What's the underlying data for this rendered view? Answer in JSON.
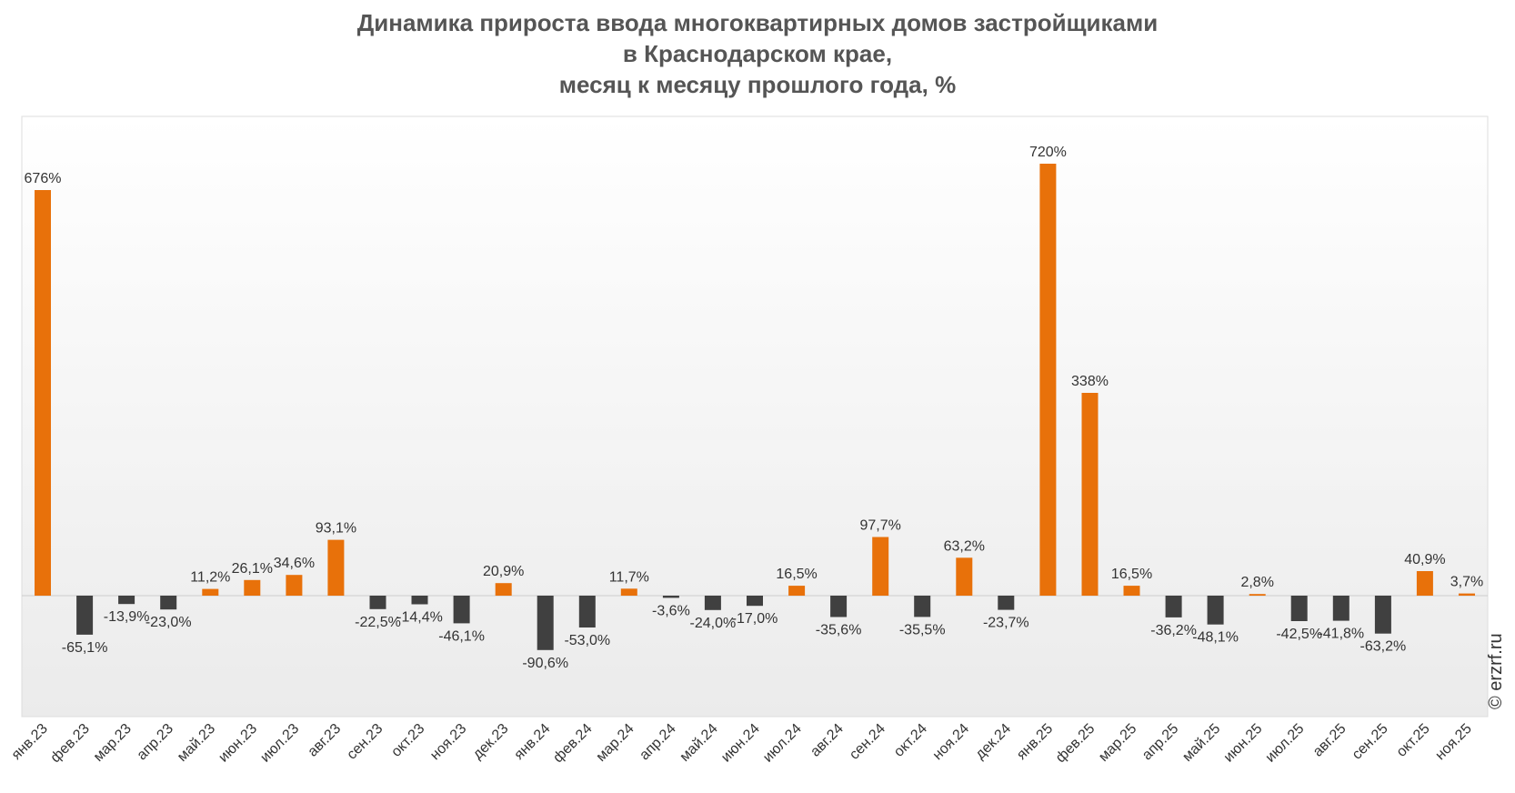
{
  "chart_data": {
    "type": "bar",
    "title": [
      "Динамика прироста ввода многоквартирных домов застройщиками",
      "в Краснодарском крае,",
      "месяц к месяцу прошлого года, %"
    ],
    "xlabel": "",
    "ylabel": "",
    "ylim": [
      -200,
      800
    ],
    "grid": false,
    "legend": "none",
    "colors": {
      "positive": "#e8710a",
      "negative": "#404040"
    },
    "categories": [
      "янв.23",
      "фев.23",
      "мар.23",
      "апр.23",
      "май.23",
      "июн.23",
      "июл.23",
      "авг.23",
      "сен.23",
      "окт.23",
      "ноя.23",
      "дек.23",
      "янв.24",
      "фев.24",
      "мар.24",
      "апр.24",
      "май.24",
      "июн.24",
      "июл.24",
      "авг.24",
      "сен.24",
      "окт.24",
      "ноя.24",
      "дек.24",
      "янв.25",
      "фев.25",
      "мар.25",
      "апр.25",
      "май.25",
      "июн.25",
      "июл.25",
      "авг.25",
      "сен.25",
      "окт.25",
      "ноя.25"
    ],
    "values": [
      676,
      -65.1,
      -13.9,
      -23.0,
      11.2,
      26.1,
      34.6,
      93.1,
      -22.5,
      -14.4,
      -46.1,
      20.9,
      -90.6,
      -53.0,
      11.7,
      -3.6,
      -24.0,
      -17.0,
      16.5,
      -35.6,
      97.7,
      -35.5,
      63.2,
      -23.7,
      720,
      338,
      16.5,
      -36.2,
      -48.1,
      2.8,
      -42.5,
      -41.8,
      -63.2,
      40.9,
      3.7
    ],
    "data_labels": [
      "676%",
      "-65,1%",
      "-13,9%",
      "-23,0%",
      "11,2%",
      "26,1%",
      "34,6%",
      "93,1%",
      "-22,5%",
      "-14,4%",
      "-46,1%",
      "20,9%",
      "-90,6%",
      "-53,0%",
      "11,7%",
      "-3,6%",
      "-24,0%",
      "-17,0%",
      "16,5%",
      "-35,6%",
      "97,7%",
      "-35,5%",
      "63,2%",
      "-23,7%",
      "720%",
      "338%",
      "16,5%",
      "-36,2%",
      "-48,1%",
      "2,8%",
      "-42,5%",
      "-41,8%",
      "-63,2%",
      "40,9%",
      "3,7%"
    ]
  },
  "copyright": "© erzrf.ru"
}
